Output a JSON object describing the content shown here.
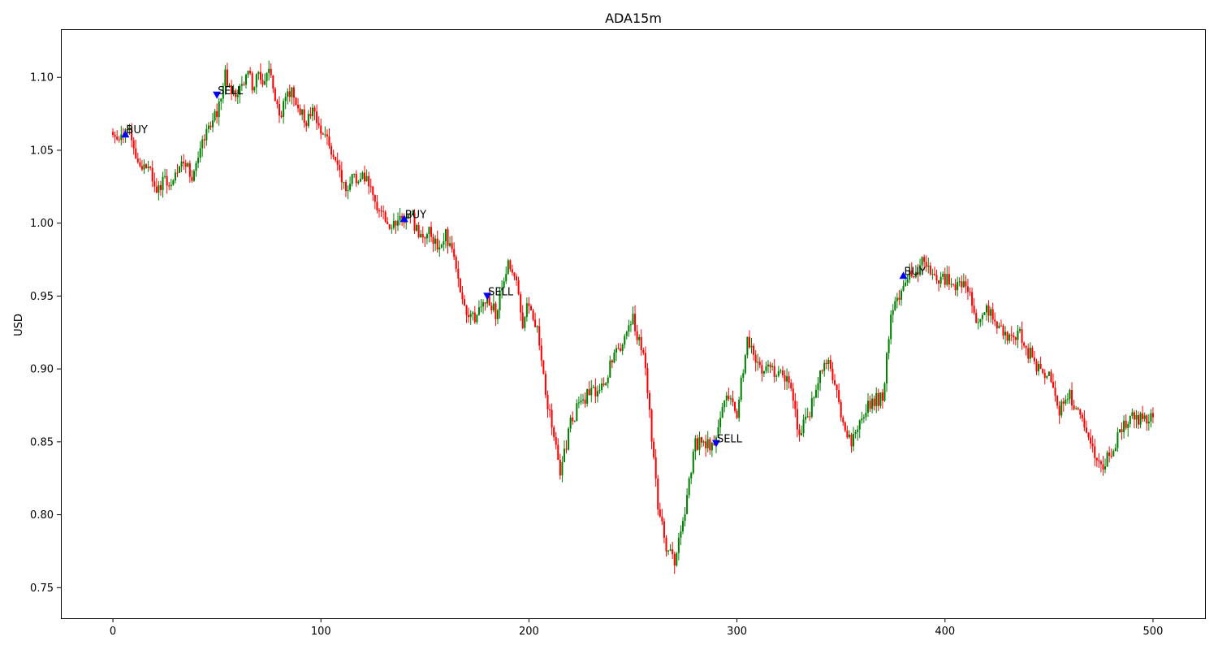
{
  "chart_data": {
    "type": "candlestick",
    "title": "ADA15m",
    "ylabel": "USD",
    "xlabel": "",
    "xlim": [
      -25,
      525
    ],
    "ylim": [
      0.729,
      1.133
    ],
    "x_ticks": [
      0,
      100,
      200,
      300,
      400,
      500
    ],
    "y_ticks": [
      0.75,
      0.8,
      0.85,
      0.9,
      0.95,
      1.0,
      1.05,
      1.1
    ],
    "grid": false,
    "colors": {
      "up": "#008000",
      "down": "#ff0000",
      "marker": "#0000ff"
    },
    "candle_count": 501,
    "price_path": [
      [
        0,
        1.058
      ],
      [
        6,
        1.063
      ],
      [
        8,
        1.064
      ],
      [
        12,
        1.04
      ],
      [
        18,
        1.037
      ],
      [
        20,
        1.025
      ],
      [
        30,
        1.03
      ],
      [
        33,
        1.046
      ],
      [
        38,
        1.032
      ],
      [
        43,
        1.053
      ],
      [
        48,
        1.07
      ],
      [
        50,
        1.075
      ],
      [
        52,
        1.087
      ],
      [
        54,
        1.101
      ],
      [
        56,
        1.091
      ],
      [
        61,
        1.091
      ],
      [
        65,
        1.106
      ],
      [
        67,
        1.092
      ],
      [
        70,
        1.1
      ],
      [
        73,
        1.094
      ],
      [
        75,
        1.103
      ],
      [
        80,
        1.071
      ],
      [
        84,
        1.094
      ],
      [
        88,
        1.083
      ],
      [
        93,
        1.07
      ],
      [
        97,
        1.077
      ],
      [
        103,
        1.055
      ],
      [
        108,
        1.038
      ],
      [
        112,
        1.025
      ],
      [
        120,
        1.035
      ],
      [
        125,
        1.018
      ],
      [
        130,
        1.004
      ],
      [
        135,
        0.998
      ],
      [
        140,
        1.003
      ],
      [
        144,
        1.003
      ],
      [
        148,
        0.989
      ],
      [
        152,
        0.993
      ],
      [
        156,
        0.986
      ],
      [
        160,
        0.992
      ],
      [
        165,
        0.97
      ],
      [
        170,
        0.933
      ],
      [
        175,
        0.935
      ],
      [
        180,
        0.948
      ],
      [
        184,
        0.939
      ],
      [
        187,
        0.955
      ],
      [
        190,
        0.975
      ],
      [
        194,
        0.962
      ],
      [
        197,
        0.927
      ],
      [
        200,
        0.947
      ],
      [
        205,
        0.92
      ],
      [
        208,
        0.88
      ],
      [
        212,
        0.855
      ],
      [
        215,
        0.83
      ],
      [
        220,
        0.862
      ],
      [
        225,
        0.88
      ],
      [
        230,
        0.883
      ],
      [
        235,
        0.888
      ],
      [
        240,
        0.905
      ],
      [
        245,
        0.92
      ],
      [
        250,
        0.933
      ],
      [
        255,
        0.91
      ],
      [
        258,
        0.87
      ],
      [
        262,
        0.805
      ],
      [
        266,
        0.777
      ],
      [
        270,
        0.77
      ],
      [
        275,
        0.805
      ],
      [
        280,
        0.85
      ],
      [
        285,
        0.847
      ],
      [
        290,
        0.852
      ],
      [
        295,
        0.88
      ],
      [
        300,
        0.87
      ],
      [
        305,
        0.92
      ],
      [
        310,
        0.903
      ],
      [
        315,
        0.898
      ],
      [
        320,
        0.899
      ],
      [
        325,
        0.892
      ],
      [
        330,
        0.855
      ],
      [
        335,
        0.872
      ],
      [
        340,
        0.9
      ],
      [
        345,
        0.903
      ],
      [
        350,
        0.868
      ],
      [
        355,
        0.848
      ],
      [
        360,
        0.866
      ],
      [
        365,
        0.878
      ],
      [
        370,
        0.88
      ],
      [
        374,
        0.936
      ],
      [
        378,
        0.95
      ],
      [
        382,
        0.966
      ],
      [
        385,
        0.965
      ],
      [
        390,
        0.975
      ],
      [
        395,
        0.962
      ],
      [
        400,
        0.962
      ],
      [
        405,
        0.956
      ],
      [
        410,
        0.96
      ],
      [
        415,
        0.935
      ],
      [
        420,
        0.94
      ],
      [
        425,
        0.932
      ],
      [
        430,
        0.92
      ],
      [
        435,
        0.925
      ],
      [
        440,
        0.912
      ],
      [
        445,
        0.9
      ],
      [
        450,
        0.895
      ],
      [
        455,
        0.873
      ],
      [
        460,
        0.882
      ],
      [
        465,
        0.87
      ],
      [
        470,
        0.845
      ],
      [
        475,
        0.83
      ],
      [
        480,
        0.843
      ],
      [
        485,
        0.86
      ],
      [
        490,
        0.868
      ],
      [
        495,
        0.866
      ],
      [
        500,
        0.868
      ]
    ],
    "signals": [
      {
        "type": "BUY",
        "x": 6,
        "y": 1.061,
        "label": "BUY"
      },
      {
        "type": "SELL",
        "x": 50,
        "y": 1.088,
        "label": "SELL"
      },
      {
        "type": "BUY",
        "x": 140,
        "y": 1.003,
        "label": "BUY"
      },
      {
        "type": "SELL",
        "x": 180,
        "y": 0.95,
        "label": "SELL"
      },
      {
        "type": "SELL",
        "x": 290,
        "y": 0.849,
        "label": "SELL"
      },
      {
        "type": "BUY",
        "x": 380,
        "y": 0.964,
        "label": "BUY"
      }
    ]
  }
}
